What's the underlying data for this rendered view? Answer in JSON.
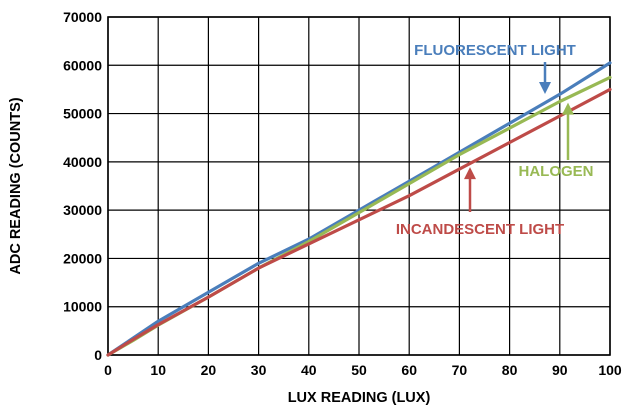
{
  "chart_data": {
    "type": "line",
    "xlabel": "LUX READING (LUX)",
    "ylabel": "ADC READING (COUNTS)",
    "xlim": [
      0,
      100
    ],
    "ylim": [
      0,
      70000
    ],
    "x_ticks": [
      0,
      10,
      20,
      30,
      40,
      50,
      60,
      70,
      80,
      90,
      100
    ],
    "y_ticks": [
      0,
      10000,
      20000,
      30000,
      40000,
      50000,
      60000,
      70000
    ],
    "grid": true,
    "x": [
      0,
      5,
      10,
      20,
      30,
      40,
      50,
      60,
      70,
      80,
      90,
      100
    ],
    "series": [
      {
        "name": "FLUORESCENT LIGHT",
        "color": "#4a7ebb",
        "values": [
          0,
          3500,
          7000,
          13000,
          19000,
          24000,
          30000,
          36000,
          42000,
          48000,
          54000,
          60500
        ]
      },
      {
        "name": "HALOGEN",
        "color": "#98b954",
        "values": [
          0,
          3000,
          6200,
          12000,
          18000,
          23500,
          29500,
          35500,
          41500,
          47000,
          52500,
          57500
        ]
      },
      {
        "name": "INCANDESCENT LIGHT",
        "color": "#be4b48",
        "values": [
          0,
          3200,
          6300,
          12000,
          18000,
          23000,
          28000,
          33000,
          38500,
          44000,
          49500,
          55000
        ]
      }
    ],
    "annotations": [
      {
        "text": "FLUORESCENT LIGHT",
        "series": 0,
        "color": "#4a7ebb",
        "at_x": 88
      },
      {
        "text": "HALOGEN",
        "series": 1,
        "color": "#98b954",
        "at_x": 92
      },
      {
        "text": "INCANDESCENT LIGHT",
        "series": 2,
        "color": "#be4b48",
        "at_x": 73
      }
    ]
  }
}
